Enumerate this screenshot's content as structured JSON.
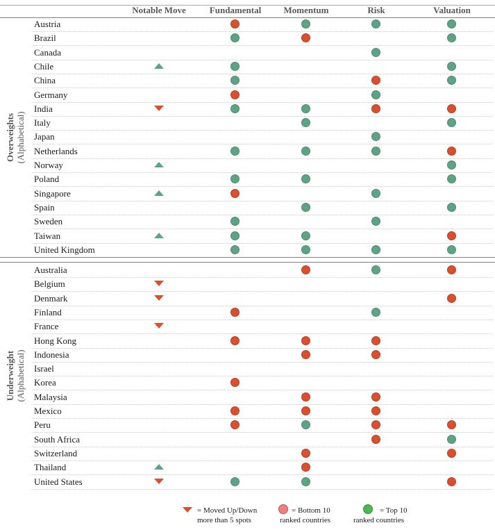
{
  "headers": {
    "notable_move": "Notable Move",
    "fundamental": "Fundamental",
    "momentum": "Momentum",
    "risk": "Risk",
    "valuation": "Valuation"
  },
  "colors": {
    "top10": "#5fa387",
    "bottom10": "#d85030"
  },
  "sections": [
    {
      "title": "Overweights",
      "subtitle": "(Alphabetical)",
      "rows": [
        {
          "country": "Austria",
          "move": "",
          "fundamental": "bottom",
          "momentum": "top",
          "risk": "top",
          "valuation": "top"
        },
        {
          "country": "Brazil",
          "move": "",
          "fundamental": "top",
          "momentum": "bottom",
          "risk": "",
          "valuation": "top"
        },
        {
          "country": "Canada",
          "move": "",
          "fundamental": "",
          "momentum": "",
          "risk": "top",
          "valuation": ""
        },
        {
          "country": "Chile",
          "move": "up",
          "fundamental": "top",
          "momentum": "",
          "risk": "",
          "valuation": "top"
        },
        {
          "country": "China",
          "move": "",
          "fundamental": "top",
          "momentum": "",
          "risk": "bottom",
          "valuation": "top"
        },
        {
          "country": "Germany",
          "move": "",
          "fundamental": "bottom",
          "momentum": "",
          "risk": "top",
          "valuation": ""
        },
        {
          "country": "India",
          "move": "down",
          "fundamental": "top",
          "momentum": "top",
          "risk": "bottom",
          "valuation": "bottom"
        },
        {
          "country": "Italy",
          "move": "",
          "fundamental": "",
          "momentum": "top",
          "risk": "",
          "valuation": "top"
        },
        {
          "country": "Japan",
          "move": "",
          "fundamental": "",
          "momentum": "",
          "risk": "top",
          "valuation": ""
        },
        {
          "country": "Netherlands",
          "move": "",
          "fundamental": "top",
          "momentum": "top",
          "risk": "top",
          "valuation": "bottom"
        },
        {
          "country": "Norway",
          "move": "up",
          "fundamental": "",
          "momentum": "",
          "risk": "",
          "valuation": "top"
        },
        {
          "country": "Poland",
          "move": "",
          "fundamental": "top",
          "momentum": "top",
          "risk": "",
          "valuation": "top"
        },
        {
          "country": "Singapore",
          "move": "up",
          "fundamental": "bottom",
          "momentum": "",
          "risk": "top",
          "valuation": ""
        },
        {
          "country": "Spain",
          "move": "",
          "fundamental": "",
          "momentum": "top",
          "risk": "",
          "valuation": "top"
        },
        {
          "country": "Sweden",
          "move": "",
          "fundamental": "top",
          "momentum": "",
          "risk": "top",
          "valuation": ""
        },
        {
          "country": "Taiwan",
          "move": "up",
          "fundamental": "top",
          "momentum": "top",
          "risk": "",
          "valuation": "bottom"
        },
        {
          "country": "United Kingdom",
          "move": "",
          "fundamental": "top",
          "momentum": "top",
          "risk": "top",
          "valuation": "top"
        }
      ]
    },
    {
      "title": "Underweight",
      "subtitle": "(Alphabetical)",
      "rows": [
        {
          "country": "Australia",
          "move": "",
          "fundamental": "",
          "momentum": "bottom",
          "risk": "top",
          "valuation": "bottom"
        },
        {
          "country": "Belgium",
          "move": "down",
          "fundamental": "",
          "momentum": "",
          "risk": "",
          "valuation": ""
        },
        {
          "country": "Denmark",
          "move": "down",
          "fundamental": "",
          "momentum": "",
          "risk": "",
          "valuation": "bottom"
        },
        {
          "country": "Finland",
          "move": "",
          "fundamental": "bottom",
          "momentum": "",
          "risk": "top",
          "valuation": ""
        },
        {
          "country": "France",
          "move": "down",
          "fundamental": "",
          "momentum": "",
          "risk": "",
          "valuation": ""
        },
        {
          "country": "Hong Kong",
          "move": "",
          "fundamental": "bottom",
          "momentum": "bottom",
          "risk": "bottom",
          "valuation": ""
        },
        {
          "country": "Indonesia",
          "move": "",
          "fundamental": "",
          "momentum": "bottom",
          "risk": "bottom",
          "valuation": ""
        },
        {
          "country": "Israel",
          "move": "",
          "fundamental": "",
          "momentum": "",
          "risk": "",
          "valuation": ""
        },
        {
          "country": "Korea",
          "move": "",
          "fundamental": "bottom",
          "momentum": "",
          "risk": "",
          "valuation": ""
        },
        {
          "country": "Malaysia",
          "move": "",
          "fundamental": "",
          "momentum": "bottom",
          "risk": "bottom",
          "valuation": ""
        },
        {
          "country": "Mexico",
          "move": "",
          "fundamental": "bottom",
          "momentum": "bottom",
          "risk": "bottom",
          "valuation": ""
        },
        {
          "country": "Peru",
          "move": "",
          "fundamental": "bottom",
          "momentum": "top",
          "risk": "bottom",
          "valuation": "bottom"
        },
        {
          "country": "South Africa",
          "move": "",
          "fundamental": "",
          "momentum": "",
          "risk": "bottom",
          "valuation": "top"
        },
        {
          "country": "Switzerland",
          "move": "",
          "fundamental": "",
          "momentum": "bottom",
          "risk": "",
          "valuation": "bottom"
        },
        {
          "country": "Thailand",
          "move": "up",
          "fundamental": "",
          "momentum": "bottom",
          "risk": "",
          "valuation": ""
        },
        {
          "country": "United States",
          "move": "down",
          "fundamental": "top",
          "momentum": "top",
          "risk": "",
          "valuation": "bottom"
        }
      ]
    }
  ],
  "legend": {
    "move_line1": "= Moved Up/Down",
    "move_line2": "more than 5 spots",
    "bottom_line1": "= Bottom 10",
    "bottom_line2": "ranked countries",
    "top_line1": "= Top 10",
    "top_line2": "ranked countries"
  }
}
